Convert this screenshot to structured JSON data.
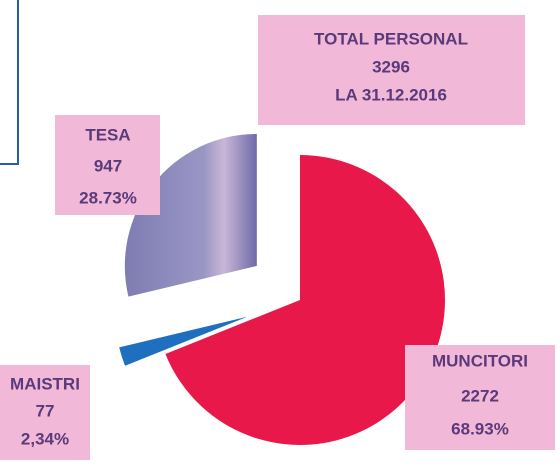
{
  "chart_data": {
    "type": "pie",
    "title_lines": [
      "TOTAL PERSONAL",
      "3296",
      "LA 31.12.2016"
    ],
    "categories": [
      "MUNCITORI",
      "MAISTRI",
      "TESA"
    ],
    "values": [
      2272,
      77,
      947
    ],
    "percent_labels": [
      "68.93%",
      "2,34%",
      "28.73%"
    ],
    "colors": [
      "#e8194a",
      "#1f6fc0",
      "#8a86b8"
    ],
    "exploded": [
      false,
      true,
      true
    ]
  }
}
